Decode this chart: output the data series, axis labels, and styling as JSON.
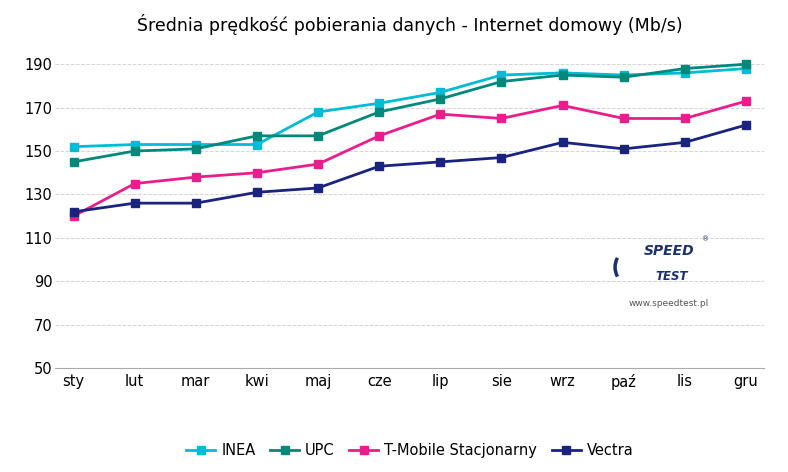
{
  "title": "Średnia prędkość pobierania danych - Internet domowy (Mb/s)",
  "months": [
    "sty",
    "lut",
    "mar",
    "kwi",
    "maj",
    "cze",
    "lip",
    "sie",
    "wrz",
    "paź",
    "lis",
    "gru"
  ],
  "series_order": [
    "INEA",
    "UPC",
    "T-Mobile Stacjonarny",
    "Vectra"
  ],
  "series": {
    "INEA": {
      "values": [
        152,
        153,
        153,
        153,
        168,
        172,
        177,
        185,
        186,
        185,
        186,
        188
      ],
      "color": "#00bcd4",
      "marker": "s"
    },
    "UPC": {
      "values": [
        145,
        150,
        151,
        157,
        157,
        168,
        174,
        182,
        185,
        184,
        188,
        190
      ],
      "color": "#00897b",
      "marker": "s"
    },
    "T-Mobile Stacjonarny": {
      "values": [
        120,
        135,
        138,
        140,
        144,
        157,
        167,
        165,
        171,
        165,
        165,
        173
      ],
      "color": "#e91e8c",
      "marker": "s"
    },
    "Vectra": {
      "values": [
        122,
        126,
        126,
        131,
        133,
        143,
        145,
        147,
        154,
        151,
        154,
        162
      ],
      "color": "#1a237e",
      "marker": "s"
    }
  },
  "ylim": [
    50,
    200
  ],
  "yticks": [
    50,
    70,
    90,
    110,
    130,
    150,
    170,
    190
  ],
  "background_color": "#ffffff",
  "grid_color": "#d0d0d0",
  "title_fontsize": 12.5,
  "tick_fontsize": 10.5,
  "legend_fontsize": 10.5,
  "watermark_text": "www.speedtest.pl",
  "logo_text1": "SPEED",
  "logo_text2": "TEST"
}
